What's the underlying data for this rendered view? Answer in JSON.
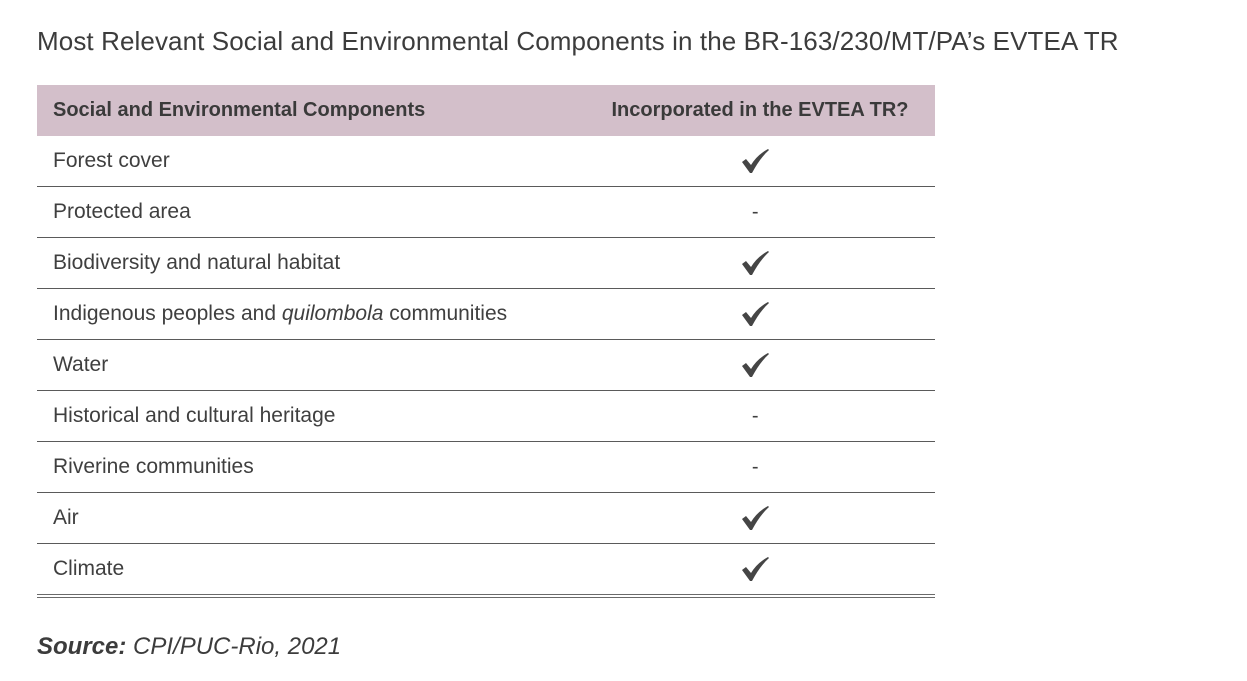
{
  "title": "Most Relevant Social and Environmental Components in the BR-163/230/MT/PA’s EVTEA TR",
  "table": {
    "headers": [
      "Social and Environmental Components",
      "Incorporated in the EVTEA TR?"
    ],
    "rows": [
      {
        "pre": "Forest cover",
        "em": "",
        "post": "",
        "incorporated": true
      },
      {
        "pre": "Protected area",
        "em": "",
        "post": "",
        "incorporated": false,
        "mark": "-"
      },
      {
        "pre": "Biodiversity and natural habitat",
        "em": "",
        "post": "",
        "incorporated": true
      },
      {
        "pre": "Indigenous peoples and ",
        "em": "quilombola",
        "post": " communities",
        "incorporated": true
      },
      {
        "pre": "Water",
        "em": "",
        "post": "",
        "incorporated": true
      },
      {
        "pre": "Historical and cultural heritage",
        "em": "",
        "post": "",
        "incorporated": false,
        "mark": "-"
      },
      {
        "pre": "Riverine communities",
        "em": "",
        "post": "",
        "incorporated": false,
        "mark": "-"
      },
      {
        "pre": "Air",
        "em": "",
        "post": "",
        "incorporated": true
      },
      {
        "pre": "Climate",
        "em": "",
        "post": "",
        "incorporated": true
      }
    ]
  },
  "source": {
    "label": "Source:",
    "text": " CPI/PUC-Rio, 2021"
  },
  "icons": {
    "incorporated": "check-icon",
    "not_incorporated": "dash"
  },
  "colors": {
    "header_bg": "#d3bfca",
    "text": "#3f3f3f",
    "check": "#454545"
  }
}
